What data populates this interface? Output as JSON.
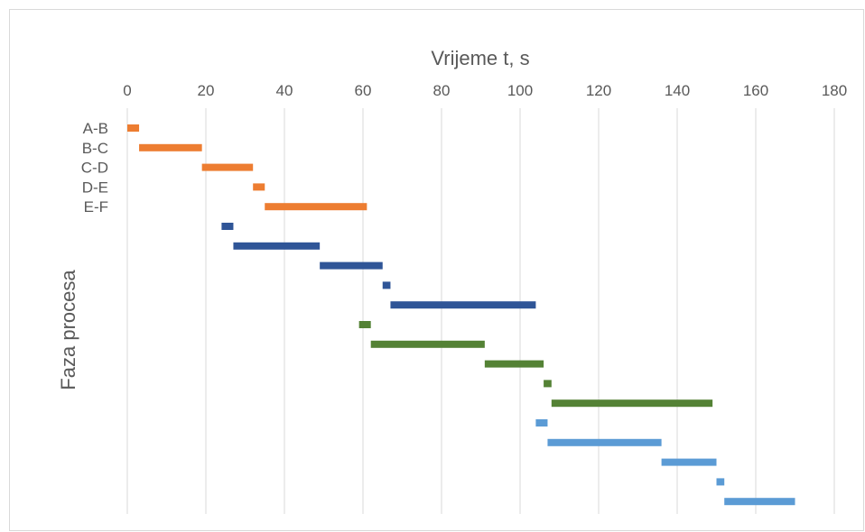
{
  "chart_data": {
    "type": "bar",
    "orientation": "horizontal",
    "stacked_gantt": true,
    "title": "",
    "xlabel": "Vrijeme t, s",
    "ylabel": "Faza procesa",
    "x_axis_position": "top",
    "xlim": [
      0,
      180
    ],
    "x_ticks": [
      0,
      20,
      40,
      60,
      80,
      100,
      120,
      140,
      160,
      180
    ],
    "grid": true,
    "legend": "none",
    "categories": [
      "A-B",
      "B-C",
      "C-D",
      "D-E",
      "E-F",
      "",
      "",
      "",
      "",
      "",
      "",
      "",
      "",
      "",
      "",
      "",
      "",
      "",
      "",
      ""
    ],
    "series": [
      {
        "color": "#ed7d31",
        "rows": [
          0,
          1,
          2,
          3,
          4
        ],
        "starts": [
          0,
          3,
          19,
          32,
          35
        ],
        "ends": [
          3,
          19,
          32,
          35,
          61
        ]
      },
      {
        "color": "#2f5597",
        "rows": [
          5,
          6,
          7,
          8,
          9
        ],
        "starts": [
          24,
          27,
          49,
          65,
          67
        ],
        "ends": [
          27,
          49,
          65,
          67,
          104
        ]
      },
      {
        "color": "#548235",
        "rows": [
          10,
          11,
          12,
          13,
          14
        ],
        "starts": [
          59,
          62,
          91,
          106,
          108
        ],
        "ends": [
          62,
          91,
          106,
          108,
          149
        ]
      },
      {
        "color": "#5b9bd5",
        "rows": [
          15,
          16,
          17,
          18,
          19
        ],
        "starts": [
          104,
          107,
          136,
          150,
          152
        ],
        "ends": [
          107,
          136,
          150,
          152,
          170
        ]
      }
    ]
  }
}
